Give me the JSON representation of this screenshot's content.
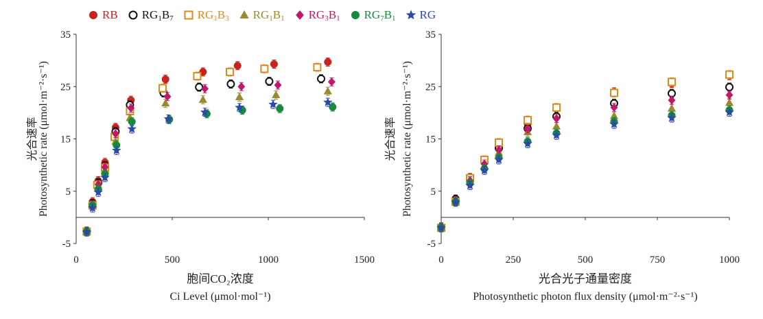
{
  "legend": [
    {
      "key": "RB",
      "base": "RB",
      "subs": [],
      "color": "#c8231f",
      "marker": "circle",
      "filled": true
    },
    {
      "key": "RG1B7",
      "base": "RG",
      "subs": [
        [
          "1",
          "B"
        ],
        [
          "7",
          ""
        ]
      ],
      "color": "#111111",
      "marker": "circle",
      "filled": false
    },
    {
      "key": "RG1B3",
      "base": "RG",
      "subs": [
        [
          "1",
          "B"
        ],
        [
          "3",
          ""
        ]
      ],
      "color": "#e08a1e",
      "marker": "square",
      "filled": false
    },
    {
      "key": "RG1B1",
      "base": "RG",
      "subs": [
        [
          "1",
          "B"
        ],
        [
          "1",
          ""
        ]
      ],
      "color": "#9a8a2e",
      "marker": "triangle",
      "filled": true
    },
    {
      "key": "RG3B1",
      "base": "RG",
      "subs": [
        [
          "3",
          "B"
        ],
        [
          "1",
          ""
        ]
      ],
      "color": "#c2186a",
      "marker": "diamond",
      "filled": true
    },
    {
      "key": "RG7B1",
      "base": "RG",
      "subs": [
        [
          "7",
          "B"
        ],
        [
          "1",
          ""
        ]
      ],
      "color": "#178a3c",
      "marker": "circle",
      "filled": true
    },
    {
      "key": "RG",
      "base": "RG",
      "subs": [],
      "color": "#2b4aa8",
      "marker": "star",
      "filled": true
    }
  ],
  "chart_data": [
    {
      "type": "scatter",
      "ylabel_cn": "光合速率",
      "ylabel_en": "Photosynthetic rate (μmol·m⁻²·s⁻¹)",
      "xlabel_cn": "胞间CO₂浓度",
      "xlabel_en": "Ci Level (μmol·mol⁻¹)",
      "xlim": [
        0,
        1500
      ],
      "ylim": [
        -5,
        35
      ],
      "xticks": [
        0,
        500,
        1000,
        1500
      ],
      "yticks": [
        -5,
        5,
        15,
        25,
        35
      ],
      "series": [
        {
          "key": "RB",
          "points": [
            [
              55,
              -2.6
            ],
            [
              85,
              3.0
            ],
            [
              115,
              7.0
            ],
            [
              150,
              10.5
            ],
            [
              205,
              17.2
            ],
            [
              285,
              22.4
            ],
            [
              465,
              26.4
            ],
            [
              660,
              27.8
            ],
            [
              840,
              29.0
            ],
            [
              1030,
              29.3
            ],
            [
              1310,
              29.7
            ]
          ]
        },
        {
          "key": "RG1B7",
          "points": [
            [
              55,
              -2.7
            ],
            [
              85,
              2.6
            ],
            [
              115,
              6.6
            ],
            [
              150,
              9.9
            ],
            [
              205,
              16.4
            ],
            [
              280,
              21.5
            ],
            [
              455,
              23.8
            ],
            [
              640,
              24.9
            ],
            [
              805,
              25.5
            ],
            [
              1005,
              26.0
            ],
            [
              1275,
              26.5
            ]
          ]
        },
        {
          "key": "RG1B3",
          "points": [
            [
              55,
              -2.7
            ],
            [
              85,
              2.3
            ],
            [
              110,
              6.2
            ],
            [
              150,
              9.5
            ],
            [
              200,
              15.4
            ],
            [
              280,
              20.3
            ],
            [
              450,
              24.7
            ],
            [
              630,
              27.0
            ],
            [
              800,
              27.8
            ],
            [
              980,
              28.4
            ],
            [
              1255,
              28.7
            ]
          ]
        },
        {
          "key": "RG1B1",
          "points": [
            [
              55,
              -2.7
            ],
            [
              85,
              2.1
            ],
            [
              115,
              5.8
            ],
            [
              150,
              9.0
            ],
            [
              205,
              14.5
            ],
            [
              280,
              19.0
            ],
            [
              465,
              21.8
            ],
            [
              660,
              22.5
            ],
            [
              850,
              23.0
            ],
            [
              1040,
              23.4
            ],
            [
              1310,
              24.1
            ]
          ]
        },
        {
          "key": "RG3B1",
          "points": [
            [
              55,
              -2.7
            ],
            [
              85,
              2.4
            ],
            [
              115,
              6.3
            ],
            [
              150,
              9.6
            ],
            [
              205,
              16.0
            ],
            [
              285,
              20.9
            ],
            [
              475,
              23.1
            ],
            [
              670,
              24.6
            ],
            [
              860,
              25.0
            ],
            [
              1050,
              25.3
            ],
            [
              1330,
              25.9
            ]
          ]
        },
        {
          "key": "RG7B1",
          "points": [
            [
              55,
              -2.7
            ],
            [
              85,
              2.3
            ],
            [
              115,
              5.4
            ],
            [
              150,
              8.3
            ],
            [
              210,
              13.8
            ],
            [
              290,
              18.3
            ],
            [
              485,
              18.7
            ],
            [
              680,
              19.8
            ],
            [
              865,
              20.5
            ],
            [
              1060,
              20.8
            ],
            [
              1335,
              21.1
            ]
          ]
        },
        {
          "key": "RG",
          "points": [
            [
              55,
              -2.8
            ],
            [
              85,
              1.8
            ],
            [
              115,
              4.8
            ],
            [
              150,
              7.6
            ],
            [
              210,
              12.8
            ],
            [
              290,
              16.9
            ],
            [
              480,
              18.8
            ],
            [
              670,
              20.1
            ],
            [
              850,
              21.0
            ],
            [
              1025,
              21.6
            ],
            [
              1310,
              22.0
            ]
          ]
        }
      ]
    },
    {
      "type": "scatter",
      "ylabel_cn": "光合速率",
      "ylabel_en": "Photosynthetic rate (μmol·m⁻²·s⁻¹)",
      "xlabel_cn": "光合光子通量密度",
      "xlabel_en": "Photosynthetic photon flux density (μmol·m⁻²·s⁻¹)",
      "xlim": [
        0,
        1000
      ],
      "ylim": [
        -5,
        35
      ],
      "xticks": [
        0,
        250,
        500,
        750,
        1000
      ],
      "yticks": [
        -5,
        5,
        15,
        25,
        35
      ],
      "series": [
        {
          "key": "RB",
          "points": [
            [
              0,
              -1.8
            ],
            [
              50,
              3.2
            ],
            [
              100,
              7.3
            ],
            [
              150,
              10.6
            ],
            [
              200,
              13.5
            ],
            [
              300,
              17.8
            ],
            [
              400,
              20.8
            ],
            [
              600,
              24.0
            ],
            [
              800,
              25.6
            ],
            [
              1000,
              27.1
            ]
          ]
        },
        {
          "key": "RG1B7",
          "points": [
            [
              0,
              -1.9
            ],
            [
              50,
              3.5
            ],
            [
              100,
              7.6
            ],
            [
              150,
              10.8
            ],
            [
              200,
              13.2
            ],
            [
              300,
              17.0
            ],
            [
              400,
              19.3
            ],
            [
              600,
              21.8
            ],
            [
              800,
              23.7
            ],
            [
              1000,
              24.9
            ]
          ]
        },
        {
          "key": "RG1B3",
          "points": [
            [
              0,
              -2.0
            ],
            [
              50,
              3.0
            ],
            [
              100,
              7.5
            ],
            [
              150,
              11.0
            ],
            [
              200,
              14.3
            ],
            [
              300,
              18.6
            ],
            [
              400,
              21.0
            ],
            [
              600,
              23.8
            ],
            [
              800,
              25.9
            ],
            [
              1000,
              27.3
            ]
          ]
        },
        {
          "key": "RG1B1",
          "points": [
            [
              0,
              -1.9
            ],
            [
              50,
              3.1
            ],
            [
              100,
              6.8
            ],
            [
              150,
              9.9
            ],
            [
              200,
              12.4
            ],
            [
              300,
              16.3
            ],
            [
              400,
              17.4
            ],
            [
              600,
              19.4
            ],
            [
              800,
              20.8
            ],
            [
              1000,
              21.9
            ]
          ]
        },
        {
          "key": "RG3B1",
          "points": [
            [
              0,
              -1.9
            ],
            [
              50,
              3.2
            ],
            [
              100,
              7.0
            ],
            [
              150,
              10.2
            ],
            [
              200,
              12.9
            ],
            [
              300,
              16.9
            ],
            [
              400,
              18.9
            ],
            [
              600,
              21.0
            ],
            [
              800,
              22.4
            ],
            [
              1000,
              23.4
            ]
          ]
        },
        {
          "key": "RG7B1",
          "points": [
            [
              0,
              -1.9
            ],
            [
              50,
              3.0
            ],
            [
              100,
              6.5
            ],
            [
              150,
              9.3
            ],
            [
              200,
              11.4
            ],
            [
              300,
              14.5
            ],
            [
              400,
              16.1
            ],
            [
              600,
              18.3
            ],
            [
              800,
              19.5
            ],
            [
              1000,
              20.5
            ]
          ]
        },
        {
          "key": "RG",
          "points": [
            [
              0,
              -2.0
            ],
            [
              50,
              2.9
            ],
            [
              100,
              6.1
            ],
            [
              150,
              9.0
            ],
            [
              200,
              11.0
            ],
            [
              300,
              14.1
            ],
            [
              400,
              15.7
            ],
            [
              600,
              17.8
            ],
            [
              800,
              19.0
            ],
            [
              1000,
              20.1
            ]
          ]
        }
      ]
    }
  ]
}
